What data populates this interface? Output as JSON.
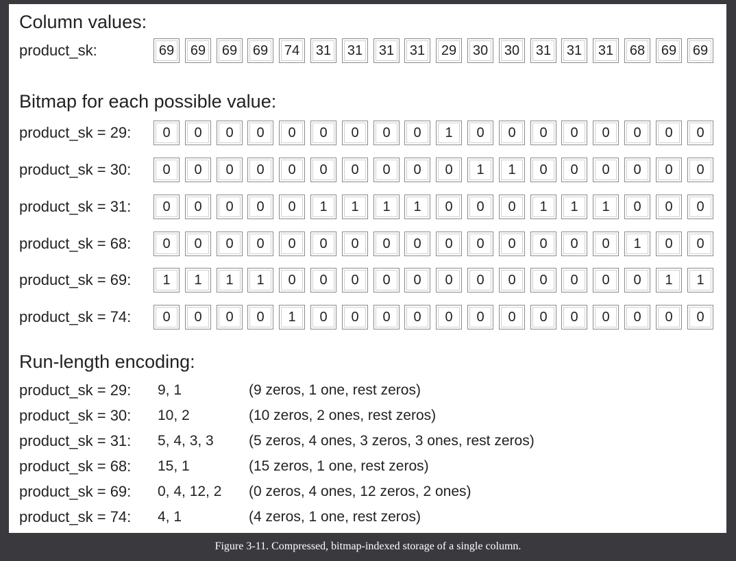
{
  "sections": {
    "column_values_title": "Column values:",
    "bitmap_title": "Bitmap for each possible value:",
    "rle_title": "Run-length encoding:"
  },
  "column": {
    "label": "product_sk:",
    "values": [
      "69",
      "69",
      "69",
      "69",
      "74",
      "31",
      "31",
      "31",
      "31",
      "29",
      "30",
      "30",
      "31",
      "31",
      "31",
      "68",
      "69",
      "69"
    ]
  },
  "bitmaps": [
    {
      "label": "product_sk = 29:",
      "bits": [
        "0",
        "0",
        "0",
        "0",
        "0",
        "0",
        "0",
        "0",
        "0",
        "1",
        "0",
        "0",
        "0",
        "0",
        "0",
        "0",
        "0",
        "0"
      ]
    },
    {
      "label": "product_sk = 30:",
      "bits": [
        "0",
        "0",
        "0",
        "0",
        "0",
        "0",
        "0",
        "0",
        "0",
        "0",
        "1",
        "1",
        "0",
        "0",
        "0",
        "0",
        "0",
        "0"
      ]
    },
    {
      "label": "product_sk = 31:",
      "bits": [
        "0",
        "0",
        "0",
        "0",
        "0",
        "1",
        "1",
        "1",
        "1",
        "0",
        "0",
        "0",
        "1",
        "1",
        "1",
        "0",
        "0",
        "0"
      ]
    },
    {
      "label": "product_sk = 68:",
      "bits": [
        "0",
        "0",
        "0",
        "0",
        "0",
        "0",
        "0",
        "0",
        "0",
        "0",
        "0",
        "0",
        "0",
        "0",
        "0",
        "1",
        "0",
        "0"
      ]
    },
    {
      "label": "product_sk = 69:",
      "bits": [
        "1",
        "1",
        "1",
        "1",
        "0",
        "0",
        "0",
        "0",
        "0",
        "0",
        "0",
        "0",
        "0",
        "0",
        "0",
        "0",
        "1",
        "1"
      ]
    },
    {
      "label": "product_sk = 74:",
      "bits": [
        "0",
        "0",
        "0",
        "0",
        "1",
        "0",
        "0",
        "0",
        "0",
        "0",
        "0",
        "0",
        "0",
        "0",
        "0",
        "0",
        "0",
        "0"
      ]
    }
  ],
  "rle": [
    {
      "label": "product_sk = 29:",
      "code": "9, 1",
      "note": "(9 zeros, 1 one, rest zeros)"
    },
    {
      "label": "product_sk = 30:",
      "code": "10, 2",
      "note": "(10 zeros, 2 ones, rest zeros)"
    },
    {
      "label": "product_sk = 31:",
      "code": "5, 4, 3, 3",
      "note": "(5 zeros, 4 ones, 3 zeros, 3 ones, rest zeros)"
    },
    {
      "label": "product_sk = 68:",
      "code": "15, 1",
      "note": "(15 zeros, 1 one, rest zeros)"
    },
    {
      "label": "product_sk = 69:",
      "code": "0, 4, 12, 2",
      "note": "(0 zeros, 4 ones, 12 zeros, 2 ones)"
    },
    {
      "label": "product_sk = 74:",
      "code": "4, 1",
      "note": "(4 zeros, 1 one, rest zeros)"
    }
  ],
  "caption": "Figure 3-11. Compressed, bitmap-indexed storage of a single column."
}
